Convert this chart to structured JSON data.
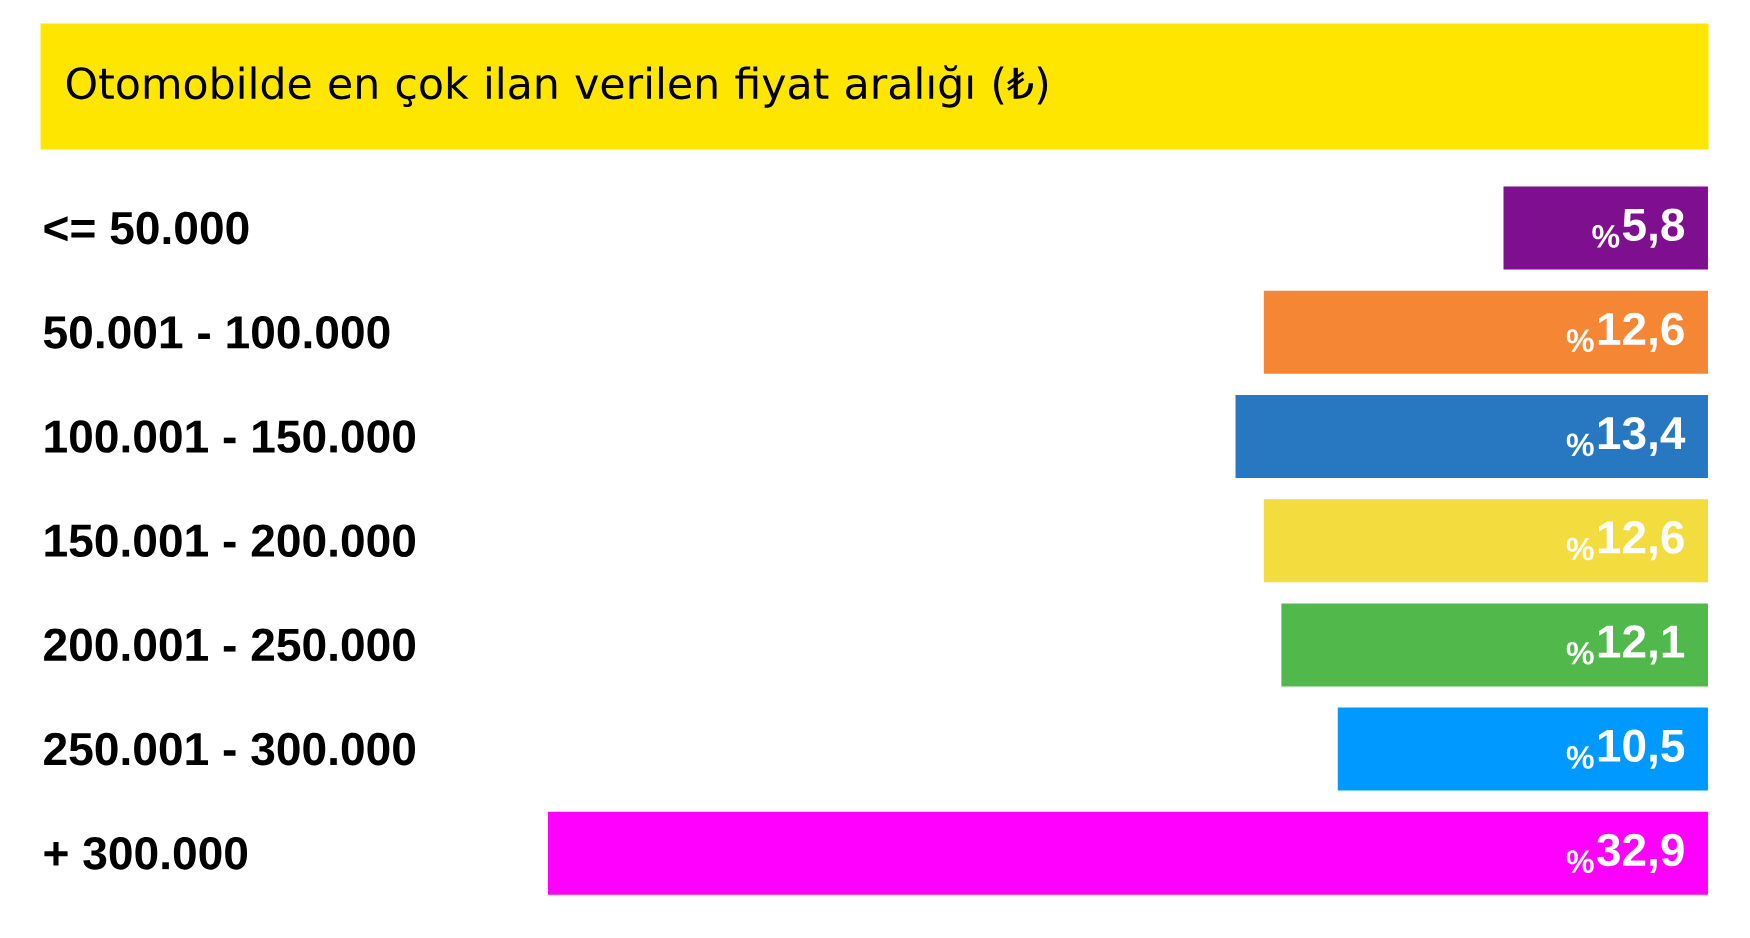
{
  "chart_data": {
    "type": "bar",
    "title": "Otomobilde en çok ilan verilen fiyat aralığı (₺)",
    "orientation": "horizontal",
    "categories": [
      "<= 50.000",
      "50.001 - 100.000",
      "100.001 - 150.000",
      "150.001 - 200.000",
      "200.001 - 250.000",
      "250.001 - 300.000",
      "+ 300.000"
    ],
    "values": [
      5.8,
      12.6,
      13.4,
      12.6,
      12.1,
      10.5,
      32.9
    ],
    "colors": [
      "#7e0f8f",
      "#f58634",
      "#2778c1",
      "#f2dc3e",
      "#51b84b",
      "#0099ff",
      "#ff00ff"
    ],
    "value_labels": [
      "$_{%}$5,8",
      "$_{%}$12,6",
      "$_{%}$13,4",
      "$_{%}$12,6",
      "$_{%}$12,1",
      "$_{%}$10,5",
      "$_{%}$32,9"
    ],
    "tick_labels": "y"
  }
}
